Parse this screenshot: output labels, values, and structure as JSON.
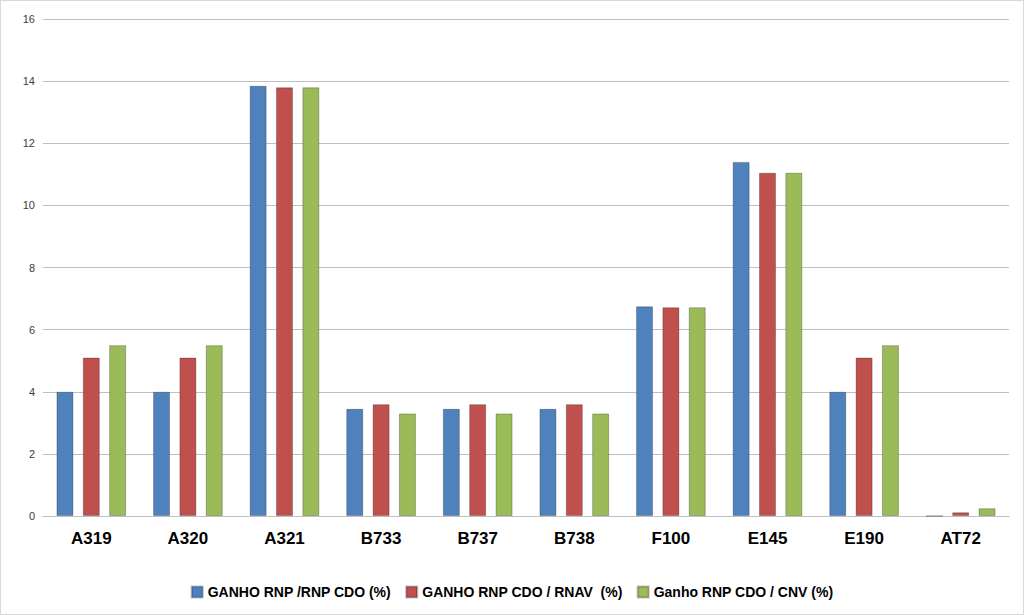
{
  "chart_data": {
    "type": "bar",
    "categories": [
      "A319",
      "A320",
      "A321",
      "B733",
      "B737",
      "B738",
      "F100",
      "E145",
      "E190",
      "AT72"
    ],
    "series": [
      {
        "name": "GANHO RNP /RNP CDO (%)",
        "color": "#4f81bd",
        "values": [
          4.0,
          4.0,
          13.85,
          3.45,
          3.45,
          3.45,
          6.75,
          11.4,
          4.0,
          0
        ]
      },
      {
        "name": "GANHO RNP CDO / RNAV  (%)",
        "color": "#c0504d",
        "values": [
          5.1,
          5.1,
          13.8,
          3.6,
          3.6,
          3.6,
          6.72,
          11.05,
          5.1,
          0.12
        ]
      },
      {
        "name": "Ganho RNP CDO / CNV (%)",
        "color": "#9bbb59",
        "values": [
          5.5,
          5.5,
          13.8,
          3.3,
          3.3,
          3.3,
          6.72,
          11.05,
          5.5,
          0.25
        ]
      }
    ],
    "ylim": [
      0,
      16
    ],
    "yticks": [
      0,
      2,
      4,
      6,
      8,
      10,
      12,
      14,
      16
    ],
    "grid": true,
    "legend": "bottom"
  }
}
